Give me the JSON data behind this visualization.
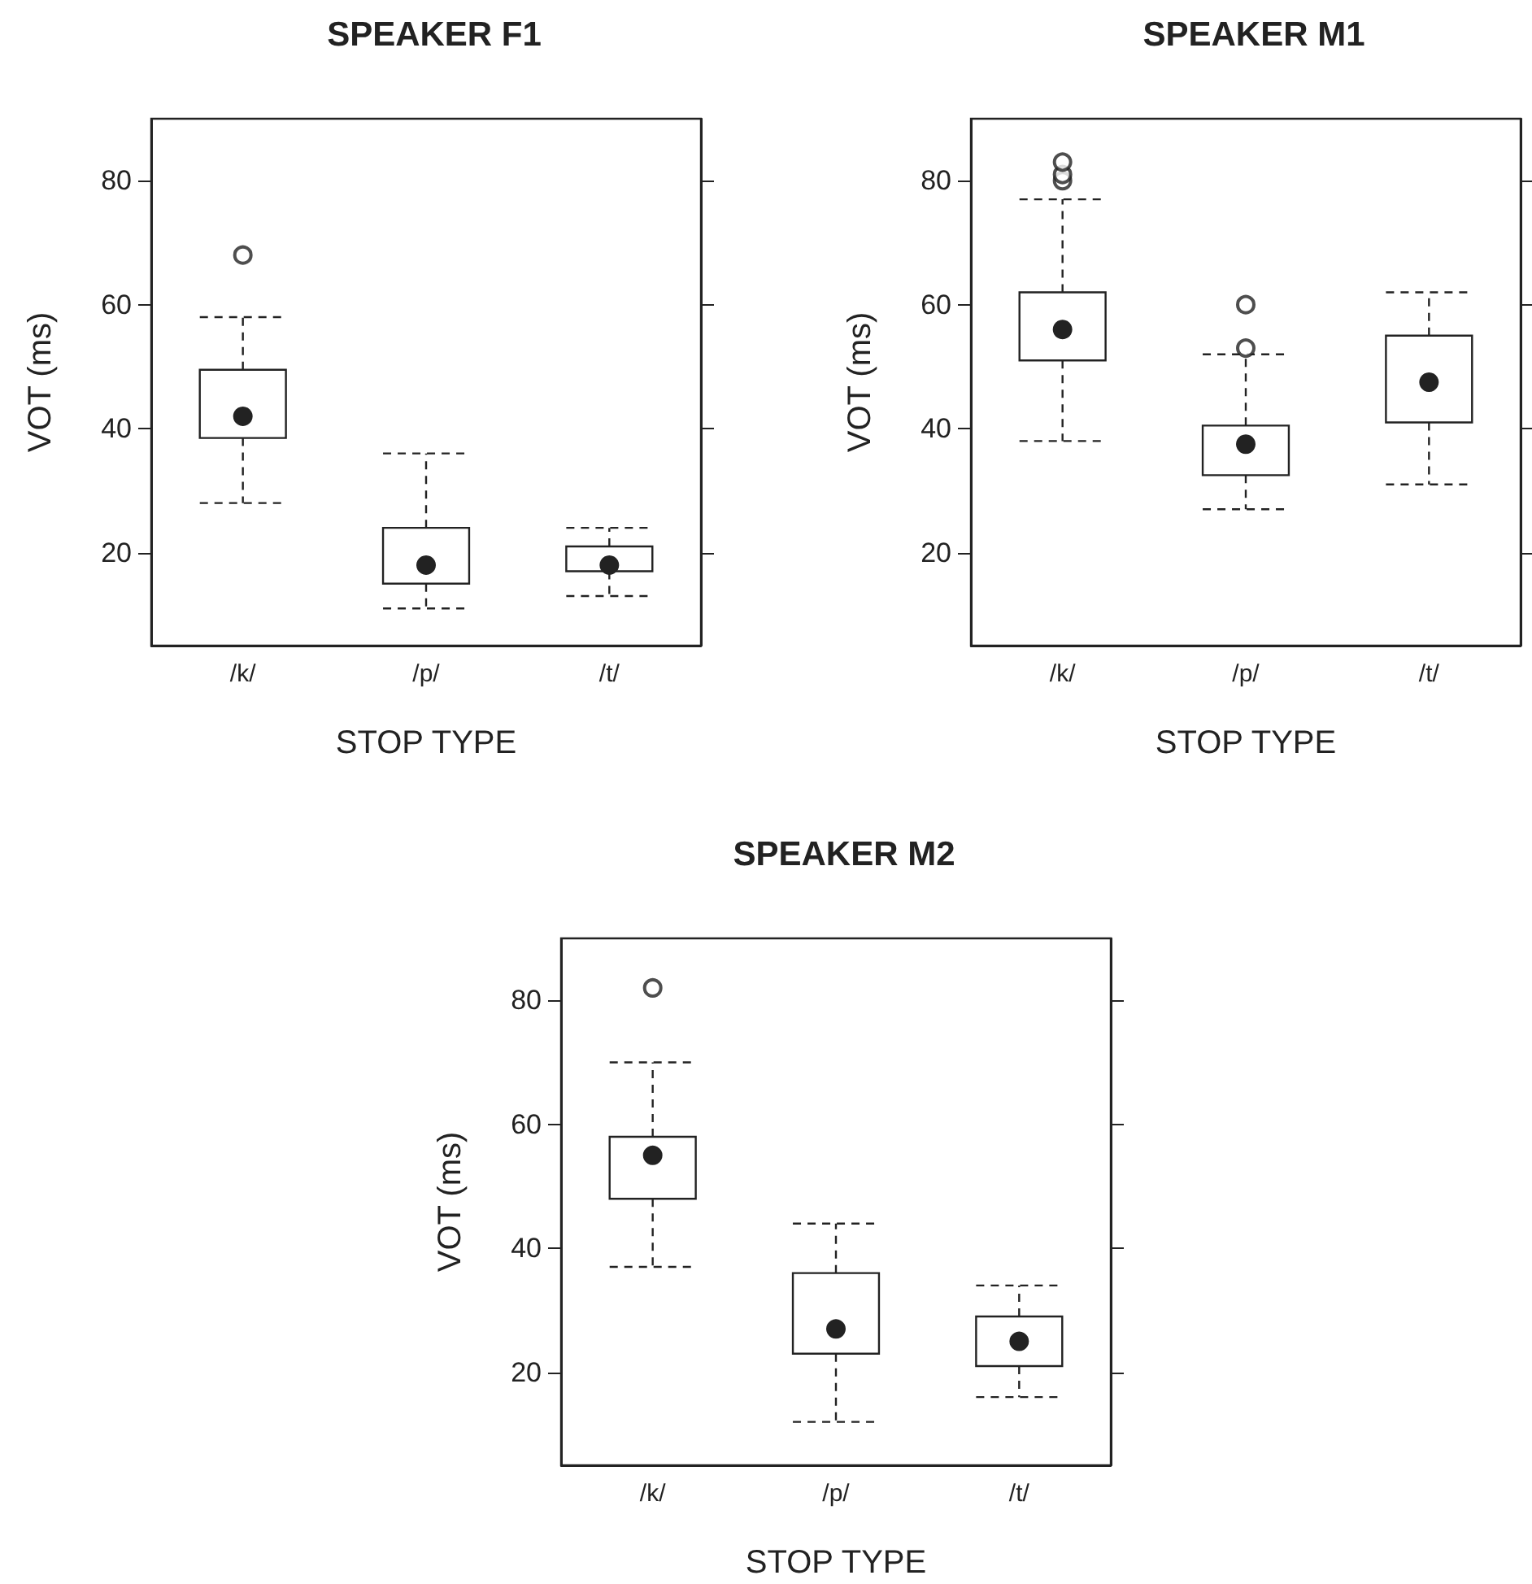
{
  "chart_data": [
    {
      "type": "box",
      "title": "SPEAKER F1",
      "xlabel": "STOP TYPE",
      "ylabel": "VOT (ms)",
      "categories": [
        "/k/",
        "/p/",
        "/t/"
      ],
      "ylim": [
        5,
        90
      ],
      "yticks": [
        20,
        40,
        60,
        80
      ],
      "boxes": [
        {
          "low": 28,
          "q1": 38.5,
          "median": 42,
          "q3": 49.5,
          "high": 58,
          "outliers": [
            68
          ]
        },
        {
          "low": 11,
          "q1": 15,
          "median": 18,
          "q3": 24,
          "high": 36
        },
        {
          "low": 13,
          "q1": 17,
          "median": 18,
          "q3": 21,
          "high": 24
        }
      ]
    },
    {
      "type": "box",
      "title": "SPEAKER M1",
      "xlabel": "STOP TYPE",
      "ylabel": "VOT (ms)",
      "categories": [
        "/k/",
        "/p/",
        "/t/"
      ],
      "ylim": [
        5,
        90
      ],
      "yticks": [
        20,
        40,
        60,
        80
      ],
      "boxes": [
        {
          "low": 38,
          "q1": 51,
          "median": 56,
          "q3": 62,
          "high": 77,
          "outliers": [
            80,
            81,
            83
          ]
        },
        {
          "low": 27,
          "q1": 32.5,
          "median": 37.5,
          "q3": 40.5,
          "high": 52,
          "outliers": [
            53,
            60
          ]
        },
        {
          "low": 31,
          "q1": 41,
          "median": 47.5,
          "q3": 55,
          "high": 62
        }
      ]
    },
    {
      "type": "box",
      "title": "SPEAKER M2",
      "xlabel": "STOP TYPE",
      "ylabel": "VOT (ms)",
      "categories": [
        "/k/",
        "/p/",
        "/t/"
      ],
      "ylim": [
        5,
        90
      ],
      "yticks": [
        20,
        40,
        60,
        80
      ],
      "boxes": [
        {
          "low": 37,
          "q1": 48,
          "median": 55,
          "q3": 58,
          "high": 70,
          "outliers": [
            82
          ]
        },
        {
          "low": 12,
          "q1": 23,
          "median": 27,
          "q3": 36,
          "high": 44
        },
        {
          "low": 16,
          "q1": 21,
          "median": 25,
          "q3": 29,
          "high": 34
        }
      ]
    }
  ]
}
